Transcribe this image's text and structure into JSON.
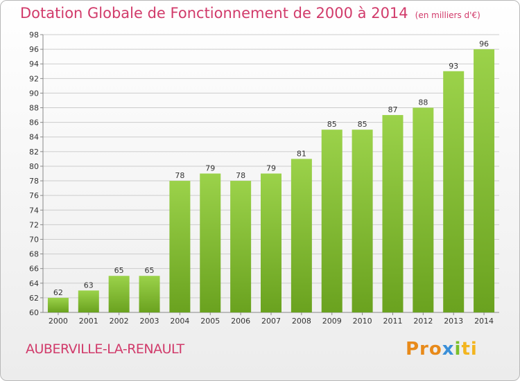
{
  "title": "Dotation Globale de Fonctionnement de 2000 à 2014",
  "subtitle": "(en milliers d'€)",
  "location": "AUBERVILLE-LA-RENAULT",
  "logo": [
    "Pro",
    "x",
    "i",
    "ti"
  ],
  "colors": {
    "bar_top": "#9bd24a",
    "bar_bottom": "#6aa21f",
    "title": "#d13a6a",
    "grid": "#cccccc"
  },
  "chart_data": {
    "type": "bar",
    "title": "Dotation Globale de Fonctionnement de 2000 à 2014",
    "subtitle": "(en milliers d'€)",
    "categories": [
      "2000",
      "2001",
      "2002",
      "2003",
      "2004",
      "2005",
      "2006",
      "2007",
      "2008",
      "2009",
      "2010",
      "2011",
      "2012",
      "2013",
      "2014"
    ],
    "values": [
      62,
      63,
      65,
      65,
      78,
      79,
      78,
      79,
      81,
      85,
      85,
      87,
      88,
      93,
      96
    ],
    "ylim": [
      60,
      98
    ],
    "yticks": [
      60,
      62,
      64,
      66,
      68,
      70,
      72,
      74,
      76,
      78,
      80,
      82,
      84,
      86,
      88,
      90,
      92,
      94,
      96,
      98
    ],
    "grid": true,
    "xlabel": "",
    "ylabel": ""
  }
}
